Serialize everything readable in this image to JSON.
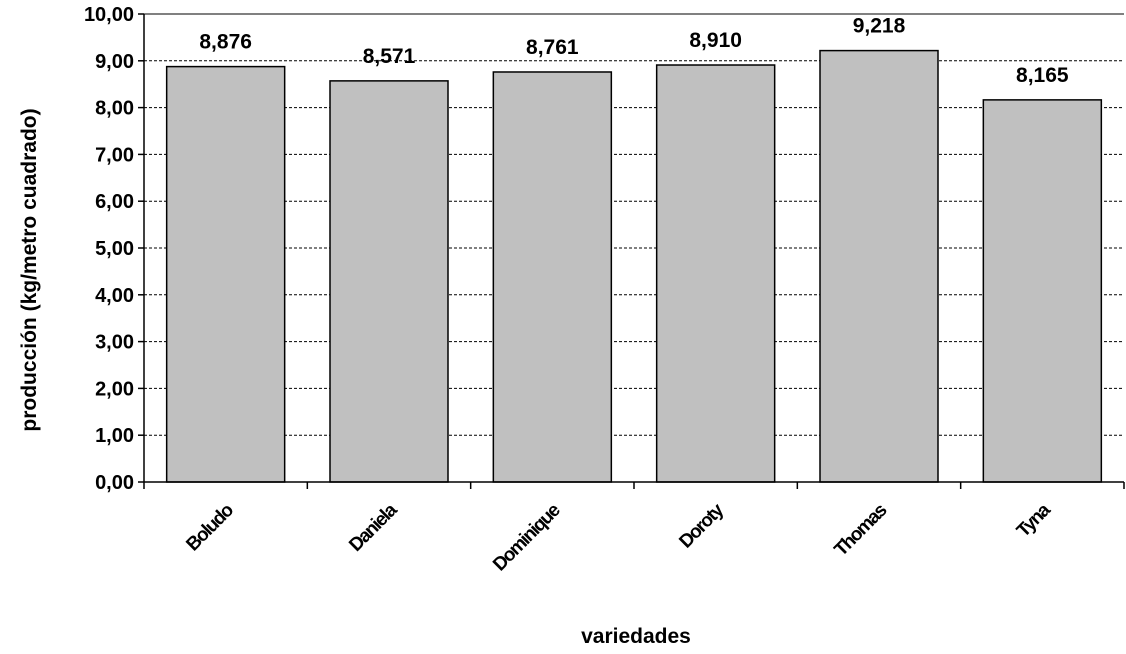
{
  "chart_data": {
    "type": "bar",
    "categories": [
      "Boludo",
      "Daniela",
      "Dominique",
      "Doroty",
      "Thomas",
      "Tyna"
    ],
    "values": [
      8.876,
      8.571,
      8.761,
      8.91,
      9.218,
      8.165
    ],
    "data_labels": [
      "8,876",
      "8,571",
      "8,761",
      "8,910",
      "9,218",
      "8,165"
    ],
    "ylim": [
      0,
      10
    ],
    "yticks": [
      0,
      1,
      2,
      3,
      4,
      5,
      6,
      7,
      8,
      9,
      10
    ],
    "ytick_labels": [
      "0,00",
      "1,00",
      "2,00",
      "3,00",
      "4,00",
      "5,00",
      "6,00",
      "7,00",
      "8,00",
      "9,00",
      "10,00"
    ],
    "xlabel": "variedades",
    "ylabel": "producción (kg/metro cuadrado)",
    "grid": true,
    "bar_color": "#c0c0c0",
    "bar_edge_color": "#000000",
    "grid_color": "#000000"
  }
}
